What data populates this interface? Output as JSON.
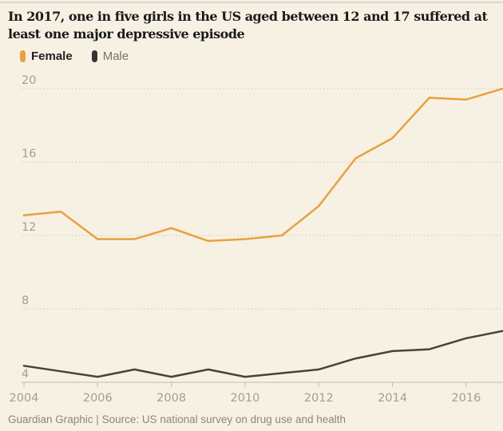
{
  "header": {
    "title": "In 2017, one in five girls in the US aged between 12 and 17 suffered at least one major depressive episode"
  },
  "legend": [
    {
      "label": "Female",
      "color": "#e8a13d"
    },
    {
      "label": "Male",
      "color": "#35332f"
    }
  ],
  "footer": {
    "text": "Guardian Graphic | Source: US national survey on drug use and health"
  },
  "chart_data": {
    "type": "line",
    "title": "In 2017, one in five girls in the US aged between 12 and 17 suffered at least one major depressive episode",
    "x": [
      2004,
      2005,
      2006,
      2007,
      2008,
      2009,
      2010,
      2011,
      2012,
      2013,
      2014,
      2015,
      2016,
      2017
    ],
    "series": [
      {
        "name": "Female",
        "color": "#e8a13d",
        "values": [
          13.1,
          13.3,
          11.8,
          11.8,
          12.4,
          11.7,
          11.8,
          12.0,
          13.6,
          16.2,
          17.3,
          19.5,
          19.4,
          20.0
        ]
      },
      {
        "name": "Male",
        "color": "#46433e",
        "values": [
          4.9,
          4.6,
          4.3,
          4.7,
          4.3,
          4.7,
          4.3,
          4.5,
          4.7,
          5.3,
          5.7,
          5.8,
          6.4,
          6.8
        ]
      }
    ],
    "xlabel": "",
    "ylabel": "",
    "ylim": [
      4,
      20
    ],
    "yticks": [
      4,
      8,
      12,
      16,
      20
    ],
    "xticks": [
      2004,
      2006,
      2008,
      2010,
      2012,
      2014,
      2016
    ],
    "grid": "horizontal-dotted",
    "legend_position": "top-left",
    "colors": {
      "background": "#f7f1e4",
      "gridline": "#d3cfc5",
      "axis": "#c9c5ba",
      "tick_label": "#a39e93"
    }
  }
}
